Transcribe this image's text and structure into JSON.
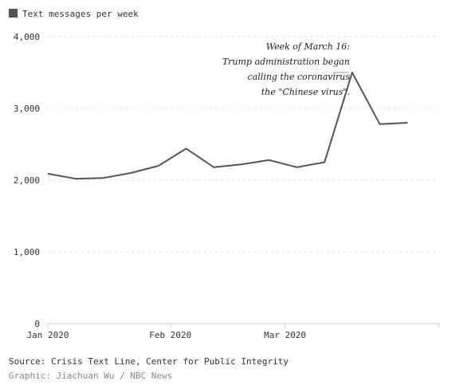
{
  "legend": {
    "label": "Text messages per week",
    "swatch_color": "#555555"
  },
  "colors": {
    "line": "#555555",
    "grid": "#dddddd",
    "axis": "#cccccc",
    "text": "#333333",
    "muted": "#888888"
  },
  "chart_data": {
    "type": "line",
    "title": "",
    "xlabel": "",
    "ylabel": "",
    "ylim": [
      0,
      4000
    ],
    "y_ticks": [
      0,
      1000,
      2000,
      3000,
      4000
    ],
    "y_tick_labels": [
      "0",
      "1,000",
      "2,000",
      "3,000",
      "4,000"
    ],
    "x_ticks": [
      {
        "date": "2020-01-01",
        "label": "Jan 2020"
      },
      {
        "date": "2020-02-01",
        "label": "Feb 2020"
      },
      {
        "date": "2020-03-01",
        "label": "Mar 2020"
      }
    ],
    "xlim": [
      "2020-01-01",
      "2020-04-09"
    ],
    "grid": true,
    "legend": "top-left",
    "series": [
      {
        "name": "Text messages per week",
        "points": [
          {
            "x": "2020-01-01",
            "y": 2090
          },
          {
            "x": "2020-01-08",
            "y": 2020
          },
          {
            "x": "2020-01-15",
            "y": 2030
          },
          {
            "x": "2020-01-22",
            "y": 2100
          },
          {
            "x": "2020-01-29",
            "y": 2200
          },
          {
            "x": "2020-02-05",
            "y": 2440
          },
          {
            "x": "2020-02-12",
            "y": 2180
          },
          {
            "x": "2020-02-19",
            "y": 2220
          },
          {
            "x": "2020-02-26",
            "y": 2280
          },
          {
            "x": "2020-03-04",
            "y": 2180
          },
          {
            "x": "2020-03-11",
            "y": 2250
          },
          {
            "x": "2020-03-18",
            "y": 3500
          },
          {
            "x": "2020-03-25",
            "y": 2780
          },
          {
            "x": "2020-04-01",
            "y": 2800
          }
        ]
      }
    ],
    "annotation": {
      "lines": [
        "Week of March 16:",
        "Trump administration began",
        "calling the coronavirus",
        "the \"Chinese virus\"."
      ],
      "target": {
        "x": "2020-03-18",
        "y": 3500
      }
    }
  },
  "footer": {
    "source": "Source: Crisis Text Line, Center for Public Integrity",
    "credit": "Graphic: Jiachuan Wu / NBC News"
  }
}
